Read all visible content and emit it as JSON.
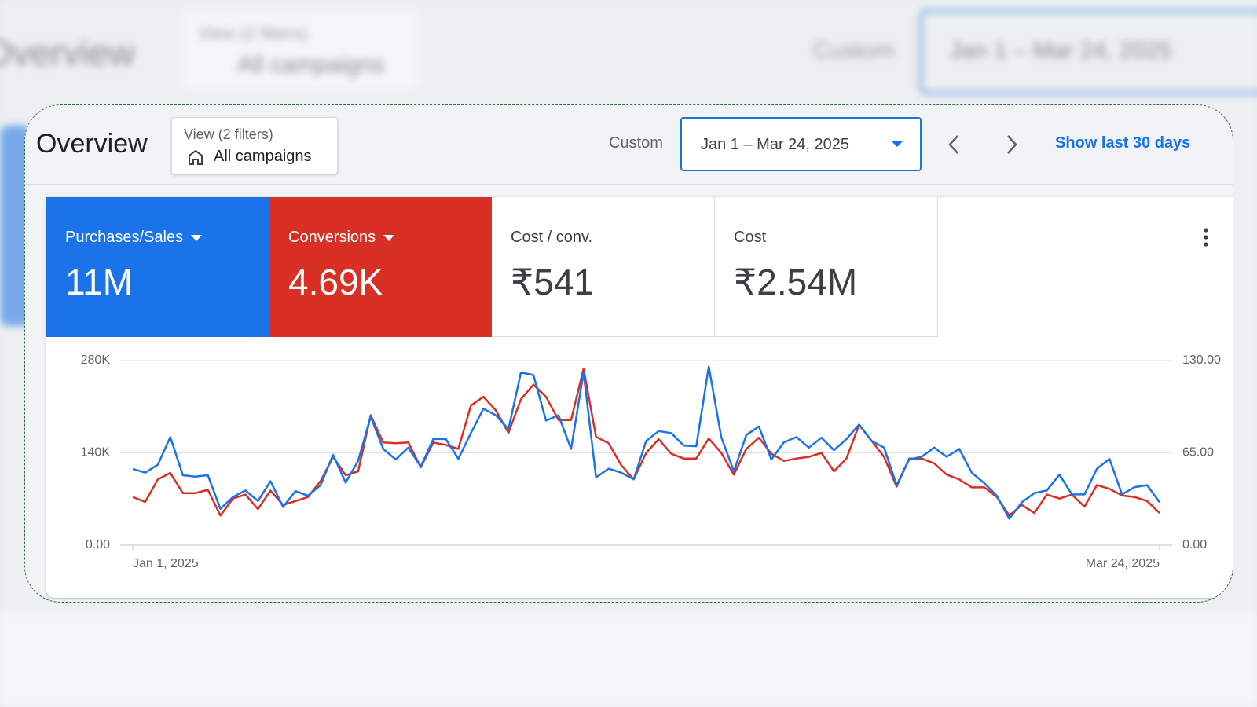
{
  "header": {
    "title": "Overview",
    "view_label": "View (2 filters)",
    "view_name": "All campaigns",
    "date_mode": "Custom",
    "date_range": "Jan 1 – Mar 24, 2025",
    "link": "Show last 30 days"
  },
  "scorecards": [
    {
      "value": "11M"
    },
    {
      "value": "4.69K"
    },
    {
      "label": "Cost / conv.",
      "value": "₹541"
    },
    {
      "label": "Cost",
      "value": "₹2.54M"
    }
  ],
  "chart_data": {
    "type": "line",
    "categories": [
      "Jan 1, 2025",
      null,
      null,
      null,
      null,
      null,
      null,
      null,
      null,
      null,
      null,
      null,
      null,
      null,
      null,
      null,
      null,
      null,
      null,
      null,
      null,
      null,
      null,
      null,
      null,
      null,
      null,
      null,
      null,
      null,
      null,
      null,
      null,
      null,
      null,
      null,
      null,
      null,
      null,
      null,
      null,
      null,
      null,
      null,
      null,
      null,
      null,
      null,
      null,
      null,
      null,
      null,
      null,
      null,
      null,
      null,
      null,
      null,
      null,
      null,
      null,
      null,
      null,
      null,
      null,
      null,
      null,
      null,
      null,
      null,
      null,
      null,
      null,
      null,
      null,
      null,
      null,
      null,
      null,
      null,
      null,
      null,
      "Mar 24, 2025"
    ],
    "series": [
      {
        "name": "Purchases/Sales",
        "color": "#1a73e8",
        "axis": "y",
        "values": [
          115700,
          110000,
          122000,
          164000,
          106000,
          104000,
          106000,
          55000,
          73000,
          83000,
          67000,
          97000,
          58000,
          82000,
          75000,
          91000,
          137000,
          95000,
          128000,
          195000,
          146000,
          130000,
          148000,
          119000,
          161000,
          161000,
          131000,
          170000,
          207000,
          197000,
          176000,
          262000,
          258000,
          189000,
          197000,
          146000,
          262000,
          103000,
          116000,
          110000,
          100000,
          158000,
          173000,
          170000,
          151000,
          150000,
          271000,
          164000,
          112000,
          167000,
          180000,
          130000,
          156000,
          164000,
          148000,
          163000,
          144000,
          161000,
          183000,
          158000,
          148000,
          91000,
          130000,
          134000,
          148000,
          134000,
          146000,
          110000,
          94000,
          75000,
          40000,
          65000,
          79000,
          83000,
          107000,
          77000,
          77000,
          116000,
          131000,
          77000,
          88000,
          91000,
          65000
        ]
      },
      {
        "name": "Conversions",
        "color": "#d93025",
        "axis": "y2",
        "values": [
          33.9,
          30.5,
          46.3,
          50.9,
          36.7,
          36.7,
          39.0,
          20.9,
          32.8,
          35.6,
          25.4,
          38.4,
          28.3,
          31.1,
          33.9,
          45.2,
          62.2,
          49.2,
          52.0,
          91.5,
          72.3,
          71.8,
          72.3,
          54.8,
          72.3,
          70.6,
          67.8,
          98.3,
          104.5,
          94.9,
          79.1,
          102.8,
          113.0,
          104.5,
          88.1,
          88.1,
          124.3,
          76.3,
          71.8,
          56.5,
          46.3,
          65.0,
          74.6,
          64.4,
          61.0,
          61.0,
          75.1,
          65.0,
          49.7,
          67.8,
          75.7,
          64.4,
          59.3,
          61.0,
          62.2,
          65.0,
          52.0,
          61.0,
          84.8,
          73.5,
          62.2,
          41.2,
          61.0,
          61.0,
          57.6,
          49.7,
          46.3,
          40.7,
          40.7,
          33.9,
          20.9,
          28.3,
          22.6,
          35.6,
          32.8,
          35.6,
          27.1,
          42.4,
          39.6,
          35.0,
          33.9,
          31.1,
          22.6
        ]
      }
    ],
    "ylim": [
      0,
      280000
    ],
    "yticks": [
      {
        "value": 0,
        "label": "0.00"
      },
      {
        "value": 140000,
        "label": "140K"
      },
      {
        "value": 280000,
        "label": "280K"
      }
    ],
    "y2lim": [
      0,
      130
    ],
    "y2ticks": [
      {
        "value": 0,
        "label": "0.00"
      },
      {
        "value": 65,
        "label": "65.00"
      },
      {
        "value": 130,
        "label": "130.00"
      }
    ],
    "grid": true
  }
}
